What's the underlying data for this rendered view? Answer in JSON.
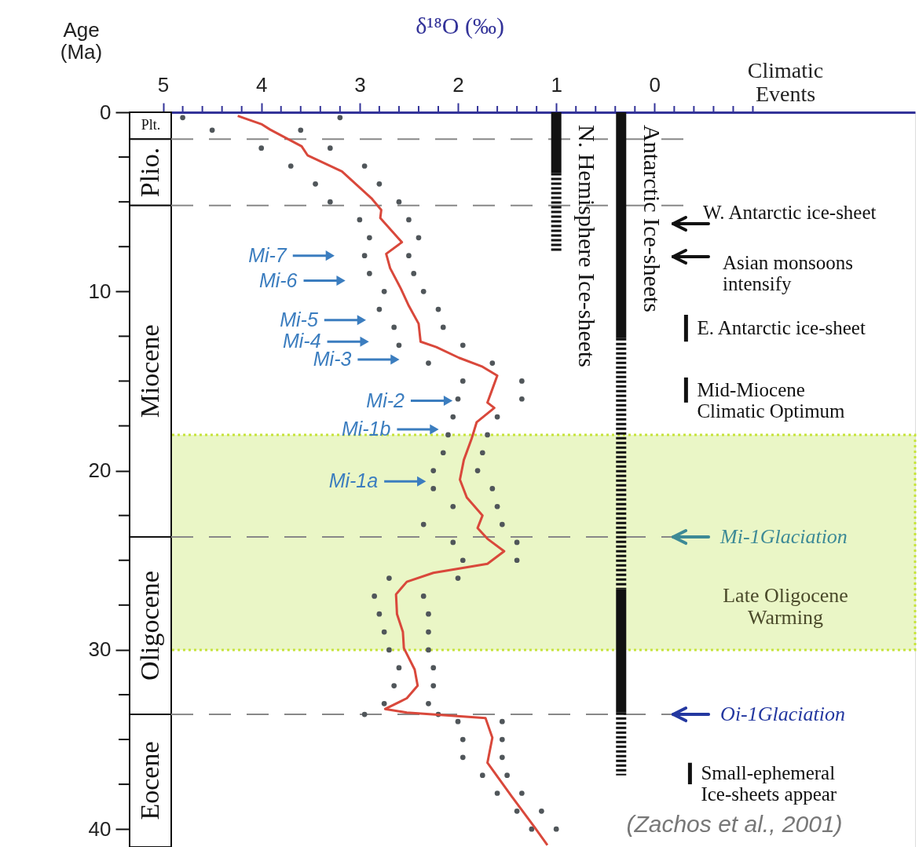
{
  "chart_data": {
    "type": "line",
    "xlabel": "δ¹⁸O (‰)",
    "ylabel": "Age\n(Ma)",
    "xlim": [
      5.34,
      -2.65
    ],
    "ylim": [
      41,
      0
    ],
    "xticks": [
      5,
      {
        "value": 4.8,
        "label": null
      },
      {
        "value": 4.6,
        "label": null
      },
      {
        "value": 4.4,
        "label": null
      },
      {
        "value": 4.2,
        "label": null
      },
      4,
      {
        "value": 3.8,
        "label": null
      },
      {
        "value": 3.6,
        "label": null
      },
      {
        "value": 3.4,
        "label": null
      },
      {
        "value": 3.2,
        "label": null
      },
      3,
      {
        "value": 2.8,
        "label": null
      },
      {
        "value": 2.6,
        "label": null
      },
      {
        "value": 2.4,
        "label": null
      },
      {
        "value": 2.2,
        "label": null
      },
      2,
      {
        "value": 1.8,
        "label": null
      },
      {
        "value": 1.6,
        "label": null
      },
      {
        "value": 1.4,
        "label": null
      },
      {
        "value": 1.2,
        "label": null
      },
      1,
      {
        "value": 0.8,
        "label": null
      },
      {
        "value": 0.6,
        "label": null
      },
      {
        "value": 0.4,
        "label": null
      },
      {
        "value": 0.2,
        "label": null
      },
      0,
      {
        "value": -0.2,
        "label": null
      },
      {
        "value": -0.4,
        "label": null
      },
      {
        "value": -0.6,
        "label": null
      },
      {
        "value": -0.8,
        "label": null
      },
      {
        "value": -1,
        "label": null
      }
    ],
    "yticks": [
      0,
      {
        "value": 2.5,
        "label": null
      },
      {
        "value": 5,
        "label": null
      },
      {
        "value": 7.5,
        "label": null
      },
      10,
      {
        "value": 12.5,
        "label": null
      },
      {
        "value": 15,
        "label": null
      },
      {
        "value": 17.5,
        "label": null
      },
      20,
      {
        "value": 22.5,
        "label": null
      },
      {
        "value": 25,
        "label": null
      },
      {
        "value": 27.5,
        "label": null
      },
      30,
      {
        "value": 32.5,
        "label": null
      },
      {
        "value": 35,
        "label": null
      },
      {
        "value": 37.5,
        "label": null
      },
      40
    ],
    "grid": false,
    "series": [
      {
        "type": "scatter",
        "marker": "circle",
        "color": "#50565a",
        "x": [
          4.8,
          3.2,
          4.5,
          3.6,
          4.0,
          3.3,
          3.7,
          2.95,
          3.45,
          2.8,
          3.3,
          2.6,
          3.0,
          2.5,
          2.9,
          2.4,
          2.95,
          2.5,
          2.9,
          2.45,
          2.75,
          2.35,
          2.8,
          2.2,
          2.65,
          2.15,
          2.6,
          1.95,
          2.3,
          1.65,
          1.95,
          1.35,
          2.0,
          1.35,
          2.05,
          1.6,
          2.1,
          1.7,
          2.15,
          1.75,
          2.25,
          1.8,
          2.25,
          1.65,
          2.05,
          1.6,
          2.35,
          1.55,
          2.05,
          1.4,
          1.95,
          1.4,
          2.7,
          2.0,
          2.85,
          2.35,
          2.8,
          2.3,
          2.75,
          2.3,
          2.7,
          2.3,
          2.6,
          2.25,
          2.65,
          2.25,
          2.75,
          2.3,
          2.95,
          2.2,
          2.0,
          1.55,
          1.95,
          1.55,
          1.95,
          1.55,
          1.75,
          1.5,
          1.6,
          1.35,
          1.4,
          1.15,
          1.25,
          1.0
        ],
        "values": [
          0.3,
          0.3,
          1,
          1,
          2,
          2,
          3,
          3,
          4,
          4,
          5,
          5,
          6,
          6,
          7,
          7,
          8,
          8,
          9,
          9,
          10,
          10,
          11,
          11,
          12,
          12,
          13,
          13,
          14,
          14,
          15,
          15,
          16,
          16,
          17,
          17,
          18,
          18,
          19,
          19,
          20,
          20,
          21,
          21,
          22,
          22,
          23,
          23,
          24,
          24,
          25,
          25,
          26,
          26,
          27,
          27,
          28,
          28,
          29,
          29,
          30,
          30,
          31,
          31,
          32,
          32,
          33,
          33,
          33.6,
          33.6,
          34,
          34,
          35,
          35,
          36,
          36,
          37,
          37,
          38,
          38,
          39,
          39,
          40,
          40
        ]
      },
      {
        "color": "#d9483b",
        "line_style": "solid",
        "x": [
          4.24,
          4.0,
          3.91,
          3.59,
          3.53,
          3.18,
          3.02,
          2.88,
          2.78,
          2.79,
          2.57,
          2.73,
          2.69,
          2.58,
          2.5,
          2.4,
          2.38,
          2.22,
          1.99,
          1.75,
          1.6,
          1.66,
          1.7,
          1.63,
          1.81,
          1.86,
          1.94,
          1.98,
          1.91,
          1.75,
          1.8,
          1.7,
          1.53,
          1.7,
          2.25,
          2.52,
          2.63,
          2.62,
          2.56,
          2.55,
          2.44,
          2.41,
          2.52,
          2.74,
          2.52,
          1.72,
          1.65,
          1.7,
          1.45,
          1.22,
          1.09
        ],
        "values": [
          0.2,
          0.66,
          0.97,
          1.9,
          2.4,
          3.3,
          4.1,
          4.8,
          5.45,
          5.9,
          7.25,
          7.9,
          8.7,
          9.85,
          10.8,
          11.8,
          12.8,
          13.1,
          13.7,
          14.2,
          14.7,
          15.6,
          16.2,
          16.5,
          17.3,
          18.2,
          19.4,
          20.5,
          21.5,
          22.5,
          23.2,
          23.8,
          24.5,
          25.2,
          25.7,
          26.2,
          26.9,
          28.0,
          29.0,
          29.9,
          31.1,
          32.0,
          32.7,
          33.3,
          33.5,
          33.8,
          34.9,
          36.3,
          38.2,
          39.9,
          40.9
        ]
      },
      {
        "type": "line",
        "name": "N. Hemisphere Ice-sheets",
        "line_style": "solid",
        "color": "#111111",
        "x": [
          1,
          1
        ],
        "values": [
          0,
          3.4
        ]
      },
      {
        "type": "line",
        "line_style": "dashed",
        "color": "#111111",
        "x": [
          1,
          1
        ],
        "values": [
          3.4,
          7.8
        ]
      },
      {
        "type": "line",
        "name": "Antarctic Ice-sheets",
        "line_style": "solid",
        "color": "#111111",
        "x": [
          0.34,
          0.34
        ],
        "values": [
          0,
          12.6
        ]
      },
      {
        "type": "line",
        "line_style": "dashed",
        "color": "#111111",
        "x": [
          0.34,
          0.34
        ],
        "values": [
          12.6,
          26.6
        ]
      },
      {
        "type": "line",
        "line_style": "solid",
        "color": "#111111",
        "x": [
          0.34,
          0.34
        ],
        "values": [
          26.6,
          33.5
        ]
      },
      {
        "type": "line",
        "line_style": "dashed",
        "color": "#111111",
        "x": [
          0.34,
          0.34
        ],
        "values": [
          33.5,
          37
        ]
      },
      {
        "type": "line",
        "name": "E. Antarctic ice-sheet",
        "line_style": "solid",
        "color": "#111111",
        "x": [
          -0.32,
          -0.32
        ],
        "values": [
          11.3,
          12.8
        ]
      },
      {
        "type": "line",
        "name": "Mid-Miocene\nClimatic Optimum",
        "line_style": "solid",
        "color": "#111111",
        "x": [
          -0.32,
          -0.32
        ],
        "values": [
          14.8,
          16.2
        ]
      },
      {
        "type": "line",
        "name": "Small-ephemeral\nIce-sheets appear",
        "line_style": "solid",
        "color": "#111111",
        "x": [
          -0.36,
          -0.36
        ],
        "values": [
          36.3,
          37.5
        ]
      }
    ],
    "ref_lines": [
      {
        "axis": "y",
        "value": 1.5,
        "line_style": "dashed",
        "color": "#888888"
      },
      {
        "axis": "y",
        "value": 5.2,
        "line_style": "dashed",
        "color": "#888888"
      },
      {
        "axis": "y",
        "value": 23.7,
        "line_style": "dashed",
        "color": "#888888"
      },
      {
        "axis": "y",
        "value": 33.6,
        "line_style": "dashed",
        "color": "#888888"
      }
    ],
    "bands": [
      {
        "axis": "y",
        "from": 18,
        "to": 30,
        "label": "Late Oligocene\nWarming",
        "color": "#eaf6c6"
      },
      {
        "axis": "y",
        "from": 0,
        "to": 1.5,
        "label": "Plt.",
        "color": "#ffffff"
      },
      {
        "axis": "y",
        "from": 1.5,
        "to": 5.2,
        "label": "Plio.",
        "color": "#ffffff"
      },
      {
        "axis": "y",
        "from": 5.2,
        "to": 23.7,
        "label": "Miocene",
        "color": "#ffffff"
      },
      {
        "axis": "y",
        "from": 23.7,
        "to": 33.6,
        "label": "Oligocene",
        "color": "#ffffff"
      },
      {
        "axis": "y",
        "from": 33.6,
        "to": 41,
        "label": "Eocene",
        "color": "#ffffff"
      }
    ],
    "annotations": [
      "Climatic\nEvents",
      "(Zachos et al., 2001)",
      {
        "text": "Mi-7",
        "x": 3.3,
        "y": 8.0
      },
      {
        "text": "Mi-6",
        "x": 3.19,
        "y": 9.4
      },
      {
        "text": "Mi-5",
        "x": 2.98,
        "y": 11.6
      },
      {
        "text": "Mi-4",
        "x": 2.95,
        "y": 12.8
      },
      {
        "text": "Mi-3",
        "x": 2.64,
        "y": 13.8
      },
      {
        "text": "Mi-2",
        "x": 2.1,
        "y": 16.1
      },
      {
        "text": "Mi-1b",
        "x": 2.24,
        "y": 17.7
      },
      {
        "text": "Mi-1a",
        "x": 2.37,
        "y": 20.6
      },
      "W. Antarctic ice-sheet",
      "Asian monsoons\nintensify",
      {
        "text": "Mi-1Glaciation",
        "x": -0.19,
        "y": 23.7
      },
      {
        "text": "Oi-1Glaciation",
        "x": -0.19,
        "y": 33.6
      }
    ]
  }
}
